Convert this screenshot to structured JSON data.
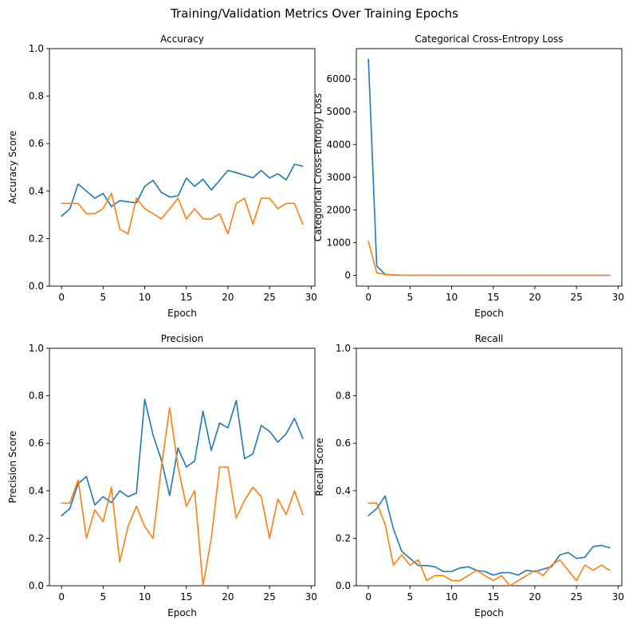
{
  "figure": {
    "title": "Training/Validation Metrics Over Training Epochs"
  },
  "chart_data": [
    {
      "type": "line",
      "title": "Accuracy",
      "xlabel": "Epoch",
      "ylabel": "Accuracy Score",
      "xlim": [
        -1.45,
        30.45
      ],
      "ylim": [
        0,
        1
      ],
      "xticks": [
        0,
        5,
        10,
        15,
        20,
        25,
        30
      ],
      "yticks": [
        0.0,
        0.2,
        0.4,
        0.6,
        0.8,
        1.0
      ],
      "ytick_labels": [
        "0.0",
        "0.2",
        "0.4",
        "0.6",
        "0.8",
        "1.0"
      ],
      "x": [
        0,
        1,
        2,
        3,
        4,
        5,
        6,
        7,
        8,
        9,
        10,
        11,
        12,
        13,
        14,
        15,
        16,
        17,
        18,
        19,
        20,
        21,
        22,
        23,
        24,
        25,
        26,
        27,
        28,
        29
      ],
      "series": [
        {
          "color": "#1f77b4",
          "values": [
            0.295,
            0.325,
            0.43,
            0.4,
            0.37,
            0.39,
            0.335,
            0.36,
            0.355,
            0.35,
            0.42,
            0.445,
            0.395,
            0.375,
            0.38,
            0.455,
            0.42,
            0.45,
            0.405,
            0.445,
            0.487,
            0.478,
            0.467,
            0.456,
            0.487,
            0.455,
            0.473,
            0.447,
            0.513,
            0.505
          ]
        },
        {
          "color": "#ff7f0e",
          "values": [
            0.348,
            0.348,
            0.348,
            0.305,
            0.305,
            0.326,
            0.391,
            0.24,
            0.22,
            0.37,
            0.326,
            0.305,
            0.283,
            0.326,
            0.37,
            0.283,
            0.326,
            0.283,
            0.283,
            0.305,
            0.22,
            0.348,
            0.37,
            0.261,
            0.37,
            0.37,
            0.326,
            0.348,
            0.348,
            0.261
          ]
        }
      ]
    },
    {
      "type": "line",
      "title": "Categorical Cross-Entropy Loss",
      "xlabel": "Epoch",
      "ylabel": "Categorical Cross-Entropy Loss",
      "xlim": [
        -1.45,
        30.45
      ],
      "ylim": [
        -330,
        6930
      ],
      "xticks": [
        0,
        5,
        10,
        15,
        20,
        25,
        30
      ],
      "yticks": [
        0,
        1000,
        2000,
        3000,
        4000,
        5000,
        6000
      ],
      "ytick_labels": [
        "0",
        "1000",
        "2000",
        "3000",
        "4000",
        "5000",
        "6000"
      ],
      "x": [
        0,
        1,
        2,
        3,
        4,
        5,
        6,
        7,
        8,
        9,
        10,
        11,
        12,
        13,
        14,
        15,
        16,
        17,
        18,
        19,
        20,
        21,
        22,
        23,
        24,
        25,
        26,
        27,
        28,
        29
      ],
      "series": [
        {
          "color": "#1f77b4",
          "values": [
            6600,
            280,
            30,
            10,
            5,
            4,
            3,
            3,
            2,
            2,
            2,
            2,
            2,
            2,
            2,
            2,
            2,
            2,
            2,
            2,
            2,
            2,
            2,
            2,
            2,
            2,
            2,
            2,
            2,
            2
          ]
        },
        {
          "color": "#ff7f0e",
          "values": [
            1040,
            80,
            25,
            10,
            5,
            4,
            3,
            3,
            2,
            2,
            2,
            2,
            2,
            2,
            2,
            2,
            2,
            2,
            2,
            2,
            2,
            2,
            2,
            2,
            2,
            2,
            2,
            2,
            2,
            2
          ]
        }
      ]
    },
    {
      "type": "line",
      "title": "Precision",
      "xlabel": "Epoch",
      "ylabel": "Precision Score",
      "xlim": [
        -1.45,
        30.45
      ],
      "ylim": [
        0,
        1
      ],
      "xticks": [
        0,
        5,
        10,
        15,
        20,
        25,
        30
      ],
      "yticks": [
        0.0,
        0.2,
        0.4,
        0.6,
        0.8,
        1.0
      ],
      "ytick_labels": [
        "0.0",
        "0.2",
        "0.4",
        "0.6",
        "0.8",
        "1.0"
      ],
      "x": [
        0,
        1,
        2,
        3,
        4,
        5,
        6,
        7,
        8,
        9,
        10,
        11,
        12,
        13,
        14,
        15,
        16,
        17,
        18,
        19,
        20,
        21,
        22,
        23,
        24,
        25,
        26,
        27,
        28,
        29
      ],
      "series": [
        {
          "color": "#1f77b4",
          "values": [
            0.295,
            0.325,
            0.43,
            0.46,
            0.34,
            0.375,
            0.35,
            0.4,
            0.375,
            0.39,
            0.785,
            0.635,
            0.53,
            0.38,
            0.58,
            0.5,
            0.525,
            0.735,
            0.57,
            0.685,
            0.665,
            0.78,
            0.535,
            0.555,
            0.675,
            0.65,
            0.605,
            0.64,
            0.705,
            0.62
          ]
        },
        {
          "color": "#ff7f0e",
          "values": [
            0.348,
            0.348,
            0.445,
            0.2,
            0.32,
            0.27,
            0.415,
            0.1,
            0.25,
            0.335,
            0.25,
            0.2,
            0.5,
            0.75,
            0.5,
            0.335,
            0.4,
            0.0,
            0.2,
            0.5,
            0.5,
            0.285,
            0.36,
            0.415,
            0.375,
            0.2,
            0.365,
            0.3,
            0.4,
            0.3
          ]
        }
      ]
    },
    {
      "type": "line",
      "title": "Recall",
      "xlabel": "Epoch",
      "ylabel": "Recall Score",
      "xlim": [
        -1.45,
        30.45
      ],
      "ylim": [
        0,
        1
      ],
      "xticks": [
        0,
        5,
        10,
        15,
        20,
        25,
        30
      ],
      "yticks": [
        0.0,
        0.2,
        0.4,
        0.6,
        0.8,
        1.0
      ],
      "ytick_labels": [
        "0.0",
        "0.2",
        "0.4",
        "0.6",
        "0.8",
        "1.0"
      ],
      "x": [
        0,
        1,
        2,
        3,
        4,
        5,
        6,
        7,
        8,
        9,
        10,
        11,
        12,
        13,
        14,
        15,
        16,
        17,
        18,
        19,
        20,
        21,
        22,
        23,
        24,
        25,
        26,
        27,
        28,
        29
      ],
      "series": [
        {
          "color": "#1f77b4",
          "values": [
            0.295,
            0.325,
            0.378,
            0.24,
            0.145,
            0.115,
            0.085,
            0.085,
            0.08,
            0.06,
            0.06,
            0.075,
            0.08,
            0.065,
            0.06,
            0.045,
            0.055,
            0.055,
            0.045,
            0.065,
            0.06,
            0.07,
            0.08,
            0.13,
            0.14,
            0.115,
            0.12,
            0.165,
            0.17,
            0.16
          ]
        },
        {
          "color": "#ff7f0e",
          "values": [
            0.348,
            0.348,
            0.26,
            0.087,
            0.13,
            0.087,
            0.109,
            0.022,
            0.043,
            0.043,
            0.022,
            0.022,
            0.043,
            0.065,
            0.043,
            0.022,
            0.043,
            0.0,
            0.022,
            0.043,
            0.065,
            0.043,
            0.087,
            0.109,
            0.065,
            0.022,
            0.087,
            0.065,
            0.087,
            0.065
          ]
        }
      ]
    }
  ]
}
